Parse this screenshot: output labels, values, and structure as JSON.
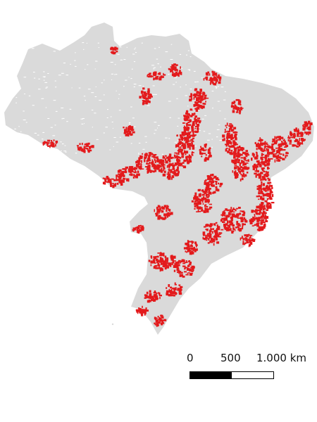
{
  "map": {
    "land_color": "#dadada",
    "highlight_color": "#e31a1c",
    "background_color": "#ffffff"
  },
  "scale_bar": {
    "labels": [
      "0",
      "500",
      "1.000 km"
    ],
    "fill_colors": [
      "#000000",
      "#ffffff"
    ]
  }
}
